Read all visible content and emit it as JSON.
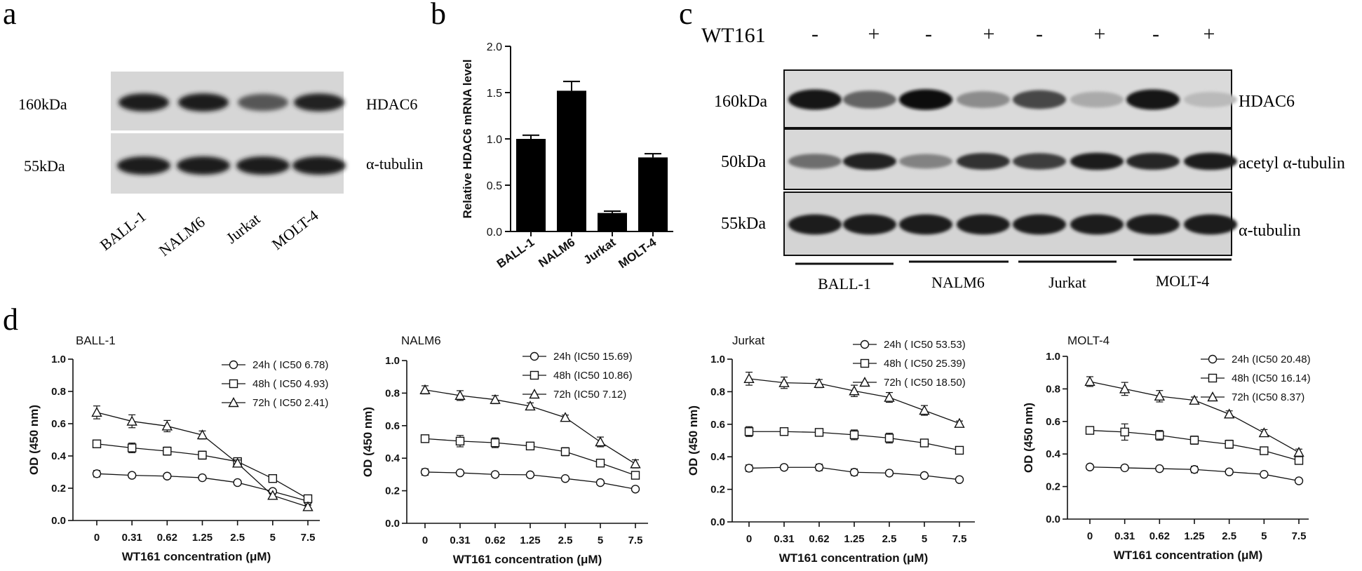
{
  "panel_labels": {
    "a": "a",
    "b": "b",
    "c": "c",
    "d": "d"
  },
  "panel_a": {
    "blot_labels": [
      "160kDa",
      "55kDa"
    ],
    "protein_labels": [
      "HDAC6",
      "α-tubulin"
    ],
    "lanes": [
      "BALL-1",
      "NALM6",
      "Jurkat",
      "MOLT-4"
    ],
    "band_intensity": {
      "HDAC6": [
        0.9,
        0.92,
        0.62,
        0.88
      ],
      "alpha_tubulin": [
        0.92,
        0.92,
        0.92,
        0.92
      ]
    }
  },
  "panel_c": {
    "treatment_label": "WT161",
    "treatment_signs": [
      "-",
      "+",
      "-",
      "+",
      "-",
      "+",
      "-",
      "+"
    ],
    "blot_labels": [
      "160kDa",
      "50kDa",
      "55kDa"
    ],
    "protein_labels": [
      "HDAC6",
      "acetyl α-tubulin",
      "α-tubulin"
    ],
    "groups": [
      "BALL-1",
      "NALM6",
      "Jurkat",
      "MOLT-4"
    ],
    "band_intensity": {
      "HDAC6": [
        0.95,
        0.55,
        1.0,
        0.35,
        0.7,
        0.2,
        0.95,
        0.12
      ],
      "acetyl_alpha_tubulin": [
        0.5,
        0.88,
        0.4,
        0.8,
        0.75,
        0.92,
        0.85,
        0.92
      ],
      "alpha_tubulin": [
        0.92,
        0.92,
        0.92,
        0.92,
        0.92,
        0.92,
        0.92,
        0.92
      ]
    }
  },
  "chart_data": [
    {
      "type": "bar",
      "title": "",
      "categories": [
        "BALL-1",
        "NALM6",
        "Jurkat",
        "MOLT-4"
      ],
      "values": [
        1.0,
        1.52,
        0.2,
        0.8
      ],
      "errors": [
        0.04,
        0.1,
        0.02,
        0.04
      ],
      "ylabel": "Relative HDAC6 mRNA level",
      "xlabel": "",
      "ylim": [
        0,
        2.0
      ],
      "yticks": [
        "0.0",
        "0.5",
        "1.0",
        "1.5",
        "2.0"
      ]
    },
    {
      "type": "line",
      "title": "BALL-1",
      "categories": [
        "0",
        "0.31",
        "0.62",
        "1.25",
        "2.5",
        "5",
        "7.5"
      ],
      "xlabel": "WT161 concentration (μM)",
      "ylabel": "OD (450 nm)",
      "ylim": [
        0,
        1.0
      ],
      "yticks": [
        "0.0",
        "0.2",
        "0.4",
        "0.6",
        "0.8",
        "1.0"
      ],
      "series": [
        {
          "name": "24h ( IC50 6.78)",
          "marker": "circle",
          "values": [
            0.29,
            0.28,
            0.275,
            0.265,
            0.235,
            0.18,
            0.12
          ],
          "errors": [
            0.02,
            0.015,
            0.015,
            0.01,
            0.015,
            0.01,
            0.01
          ]
        },
        {
          "name": "48h ( IC50 4.93)",
          "marker": "square",
          "values": [
            0.475,
            0.45,
            0.43,
            0.405,
            0.365,
            0.26,
            0.135
          ],
          "errors": [
            0.02,
            0.03,
            0.025,
            0.025,
            0.02,
            0.01,
            0.01
          ]
        },
        {
          "name": "72h ( IC50 2.41)",
          "marker": "triangle",
          "values": [
            0.67,
            0.615,
            0.585,
            0.53,
            0.355,
            0.155,
            0.085
          ],
          "errors": [
            0.04,
            0.04,
            0.035,
            0.025,
            0.02,
            0.01,
            0.01
          ]
        }
      ]
    },
    {
      "type": "line",
      "title": "NALM6",
      "categories": [
        "0",
        "0.31",
        "0.62",
        "1.25",
        "2.5",
        "5",
        "7.5"
      ],
      "xlabel": "WT161 concentration (μM)",
      "ylabel": "OD (450 nm)",
      "ylim": [
        0,
        1.0
      ],
      "yticks": [
        "0.0",
        "0.2",
        "0.4",
        "0.6",
        "0.8",
        "1.0"
      ],
      "series": [
        {
          "name": "24h (IC50 15.69)",
          "marker": "circle",
          "values": [
            0.315,
            0.31,
            0.3,
            0.298,
            0.275,
            0.25,
            0.21
          ],
          "errors": [
            0.02,
            0.01,
            0.01,
            0.01,
            0.01,
            0.01,
            0.01
          ]
        },
        {
          "name": "48h (IC50 10.86)",
          "marker": "square",
          "values": [
            0.52,
            0.505,
            0.495,
            0.475,
            0.44,
            0.37,
            0.295
          ],
          "errors": [
            0.015,
            0.035,
            0.03,
            0.02,
            0.025,
            0.02,
            0.015
          ]
        },
        {
          "name": "72h (IC50 7.12)",
          "marker": "triangle",
          "values": [
            0.82,
            0.785,
            0.76,
            0.72,
            0.65,
            0.5,
            0.365
          ],
          "errors": [
            0.025,
            0.03,
            0.025,
            0.02,
            0.015,
            0.03,
            0.025
          ]
        }
      ]
    },
    {
      "type": "line",
      "title": "Jurkat",
      "categories": [
        "0",
        "0.31",
        "0.62",
        "1.25",
        "2.5",
        "5",
        "7.5"
      ],
      "xlabel": "WT161 concentration (μM)",
      "ylabel": "OD (450 nm)",
      "ylim": [
        0,
        1.0
      ],
      "yticks": [
        "0.0",
        "0.2",
        "0.4",
        "0.6",
        "0.8",
        "1.0"
      ],
      "series": [
        {
          "name": "24h ( IC50 53.53)",
          "marker": "circle",
          "values": [
            0.33,
            0.335,
            0.335,
            0.305,
            0.3,
            0.285,
            0.26
          ],
          "errors": [
            0.02,
            0.015,
            0.02,
            0.02,
            0.015,
            0.015,
            0.01
          ]
        },
        {
          "name": "48h ( IC50 25.39)",
          "marker": "square",
          "values": [
            0.555,
            0.555,
            0.55,
            0.535,
            0.515,
            0.485,
            0.44
          ],
          "errors": [
            0.03,
            0.02,
            0.02,
            0.03,
            0.03,
            0.015,
            0.02
          ]
        },
        {
          "name": "72h ( IC50 18.50)",
          "marker": "triangle",
          "values": [
            0.88,
            0.855,
            0.85,
            0.805,
            0.765,
            0.685,
            0.605
          ],
          "errors": [
            0.04,
            0.035,
            0.025,
            0.035,
            0.03,
            0.03,
            0.015
          ]
        }
      ]
    },
    {
      "type": "line",
      "title": "MOLT-4",
      "categories": [
        "0",
        "0.31",
        "0.62",
        "1.25",
        "2.5",
        "5",
        "7.5"
      ],
      "xlabel": "WT161 concentration (μM)",
      "ylabel": "OD (450 nm)",
      "ylim": [
        0,
        1.0
      ],
      "yticks": [
        "0.0",
        "0.2",
        "0.4",
        "0.6",
        "0.8",
        "1.0"
      ],
      "series": [
        {
          "name": "24h (IC50 20.48)",
          "marker": "circle",
          "values": [
            0.32,
            0.315,
            0.31,
            0.305,
            0.29,
            0.275,
            0.235
          ],
          "errors": [
            0.015,
            0.01,
            0.015,
            0.02,
            0.015,
            0.01,
            0.01
          ]
        },
        {
          "name": "48h (IC50 16.14)",
          "marker": "square",
          "values": [
            0.545,
            0.535,
            0.515,
            0.485,
            0.46,
            0.42,
            0.36
          ],
          "errors": [
            0.02,
            0.05,
            0.03,
            0.025,
            0.025,
            0.02,
            0.02
          ]
        },
        {
          "name": "72h (IC50 8.37)",
          "marker": "triangle",
          "values": [
            0.845,
            0.8,
            0.755,
            0.73,
            0.645,
            0.53,
            0.41
          ],
          "errors": [
            0.03,
            0.04,
            0.035,
            0.02,
            0.02,
            0.02,
            0.02
          ]
        }
      ]
    }
  ]
}
